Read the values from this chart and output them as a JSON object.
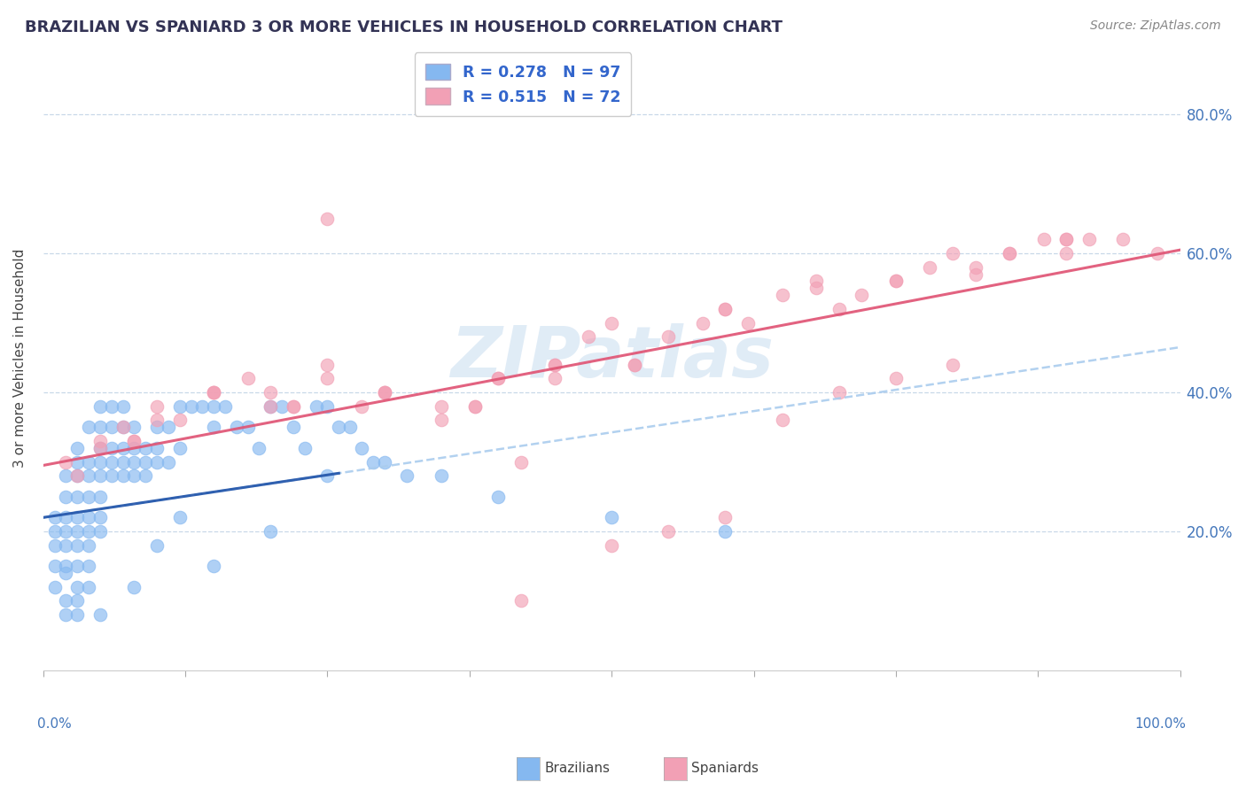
{
  "title": "BRAZILIAN VS SPANIARD 3 OR MORE VEHICLES IN HOUSEHOLD CORRELATION CHART",
  "source": "Source: ZipAtlas.com",
  "ylabel": "3 or more Vehicles in Household",
  "xmin": 0.0,
  "xmax": 100.0,
  "ymin": 0.0,
  "ymax": 90.0,
  "ytick_vals": [
    20.0,
    40.0,
    60.0,
    80.0
  ],
  "r_brazilian": 0.278,
  "n_brazilian": 97,
  "r_spaniard": 0.515,
  "n_spaniard": 72,
  "color_brazilian": "#85b8f0",
  "color_spaniard": "#f2a0b5",
  "color_reg_spaniard": "#e05575",
  "color_reg_dashed": "#aaccee",
  "color_reg_blue_solid": "#2255aa",
  "watermark_text": "ZIPatlas",
  "watermark_color": "#c8ddf0",
  "background_color": "#ffffff",
  "grid_color": "#c8d8e8",
  "title_color": "#333355",
  "source_color": "#888888",
  "axis_label_color": "#4477bb",
  "legend_text_color": "#3366cc",
  "brazilians_x": [
    1,
    1,
    1,
    1,
    1,
    2,
    2,
    2,
    2,
    2,
    2,
    2,
    2,
    2,
    3,
    3,
    3,
    3,
    3,
    3,
    3,
    3,
    3,
    3,
    3,
    4,
    4,
    4,
    4,
    4,
    4,
    4,
    4,
    4,
    5,
    5,
    5,
    5,
    5,
    5,
    5,
    5,
    6,
    6,
    6,
    6,
    6,
    7,
    7,
    7,
    7,
    7,
    8,
    8,
    8,
    8,
    9,
    9,
    9,
    10,
    10,
    10,
    11,
    11,
    12,
    12,
    13,
    14,
    15,
    15,
    16,
    17,
    18,
    19,
    20,
    21,
    22,
    23,
    24,
    25,
    26,
    27,
    28,
    29,
    30,
    32,
    35,
    40,
    50,
    60,
    15,
    20,
    25,
    10,
    12,
    8,
    5
  ],
  "brazilians_y": [
    18,
    20,
    22,
    15,
    12,
    25,
    22,
    28,
    20,
    18,
    15,
    10,
    8,
    14,
    30,
    28,
    25,
    22,
    20,
    18,
    15,
    12,
    10,
    8,
    32,
    35,
    30,
    28,
    25,
    22,
    20,
    18,
    15,
    12,
    38,
    35,
    32,
    30,
    28,
    25,
    22,
    20,
    38,
    35,
    32,
    30,
    28,
    38,
    35,
    32,
    30,
    28,
    35,
    32,
    30,
    28,
    32,
    30,
    28,
    35,
    32,
    30,
    35,
    30,
    38,
    32,
    38,
    38,
    38,
    35,
    38,
    35,
    35,
    32,
    38,
    38,
    35,
    32,
    38,
    38,
    35,
    35,
    32,
    30,
    30,
    28,
    28,
    25,
    22,
    20,
    15,
    20,
    28,
    18,
    22,
    12,
    8
  ],
  "spaniards_x": [
    2,
    3,
    5,
    7,
    8,
    10,
    12,
    15,
    18,
    20,
    22,
    25,
    28,
    30,
    35,
    38,
    40,
    42,
    45,
    48,
    50,
    52,
    55,
    58,
    60,
    62,
    65,
    68,
    70,
    72,
    75,
    78,
    80,
    82,
    85,
    88,
    90,
    92,
    95,
    98,
    5,
    10,
    15,
    20,
    25,
    30,
    35,
    40,
    45,
    50,
    55,
    60,
    65,
    70,
    75,
    80,
    85,
    90,
    8,
    15,
    22,
    30,
    38,
    45,
    52,
    60,
    68,
    75,
    82,
    90,
    25,
    42
  ],
  "spaniards_y": [
    30,
    28,
    32,
    35,
    33,
    38,
    36,
    40,
    42,
    40,
    38,
    44,
    38,
    40,
    36,
    38,
    42,
    30,
    44,
    48,
    50,
    44,
    48,
    50,
    52,
    50,
    54,
    56,
    52,
    54,
    56,
    58,
    60,
    58,
    60,
    62,
    60,
    62,
    62,
    60,
    33,
    36,
    40,
    38,
    42,
    40,
    38,
    42,
    44,
    18,
    20,
    22,
    36,
    40,
    42,
    44,
    60,
    62,
    33,
    40,
    38,
    40,
    38,
    42,
    44,
    52,
    55,
    56,
    57,
    62,
    65,
    10
  ],
  "blue_solid_xmax": 26,
  "reg_spaniard_slope": 0.31,
  "reg_spaniard_intercept": 29.5,
  "reg_dashed_slope": 0.245,
  "reg_dashed_intercept": 22.0
}
